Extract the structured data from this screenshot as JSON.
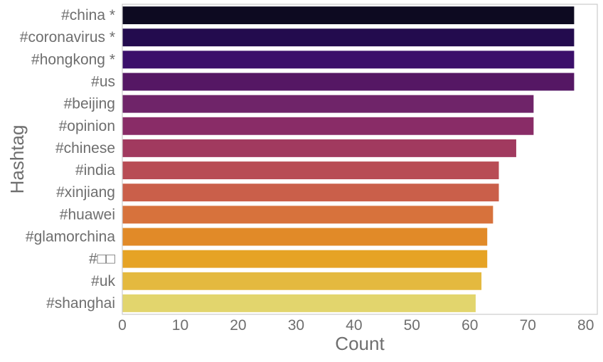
{
  "chart_data": {
    "type": "bar",
    "orientation": "horizontal",
    "title": "",
    "xlabel": "Count",
    "ylabel": "Hashtag",
    "xlim": [
      0,
      82
    ],
    "x_ticks": [
      0,
      10,
      20,
      30,
      40,
      50,
      60,
      70,
      80
    ],
    "grid": false,
    "legend": "none",
    "categories": [
      "#china *",
      "#coronavirus *",
      "#hongkong *",
      "#us",
      "#beijing",
      "#opinion",
      "#chinese",
      "#india",
      "#xinjiang",
      "#huawei",
      "#glamorchina",
      "#□□",
      "#uk",
      "#shanghai"
    ],
    "values": [
      78,
      78,
      78,
      78,
      71,
      71,
      68,
      65,
      65,
      64,
      63,
      63,
      62,
      61
    ],
    "colors": [
      "#0d0a21",
      "#230b4e",
      "#3b0f6a",
      "#551764",
      "#6f2469",
      "#892c67",
      "#a13a5f",
      "#b84c55",
      "#ca5f4a",
      "#d7723c",
      "#e18a28",
      "#e6a325",
      "#e4b93f",
      "#e2d56d"
    ],
    "axis_color": "#cccccc",
    "tick_label_color": "#6e6e6e",
    "axis_label_color": "#6e6e6e"
  }
}
